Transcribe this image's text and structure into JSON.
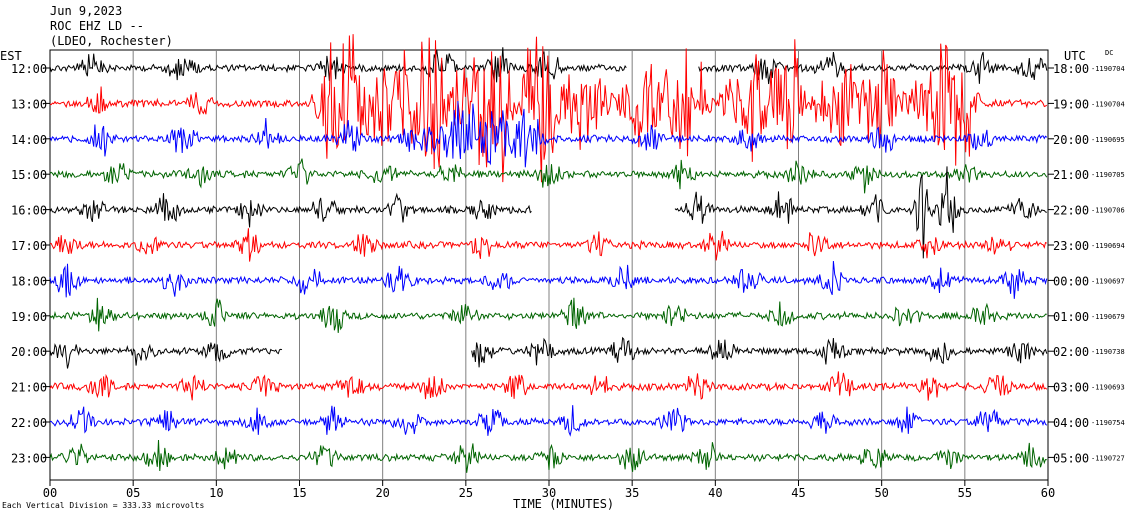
{
  "header": {
    "line1": "Jun 9,2023",
    "line2": "ROC EHZ LD --",
    "line3": "(LDEO, Rochester)"
  },
  "left_axis_title": "EST",
  "right_axis_title": "UTC",
  "dc_label": "DC",
  "footer_note": "Each Vertical Division =  333.33 microvolts",
  "chart_data": {
    "type": "line",
    "xlabel": "TIME (MINUTES)",
    "xlim": [
      0,
      60
    ],
    "x_ticks": [
      "00",
      "05",
      "10",
      "15",
      "20",
      "25",
      "30",
      "35",
      "40",
      "45",
      "50",
      "55",
      "60"
    ],
    "rows": [
      {
        "est": "12:00",
        "utc": "18:00",
        "dc": "-1190704",
        "color": "#000000",
        "gaps": [
          [
            34.7,
            39.0
          ]
        ],
        "bursts": [
          [
            2.5,
            1.0,
            0.8
          ],
          [
            8.0,
            1.2,
            0.8
          ],
          [
            17.0,
            1.0,
            0.9
          ],
          [
            23.5,
            1.0,
            1.3
          ],
          [
            27.0,
            1.0,
            1.4
          ],
          [
            30.0,
            1.0,
            1.2
          ],
          [
            43.0,
            1.0,
            1.1
          ],
          [
            47.0,
            1.2,
            0.9
          ],
          [
            56.0,
            1.0,
            0.9
          ],
          [
            59.0,
            1.0,
            0.8
          ]
        ]
      },
      {
        "est": "13:00",
        "utc": "19:00",
        "dc": "-1190704",
        "color": "#ff0000",
        "gaps": [],
        "bursts": [
          [
            3.0,
            1.0,
            0.8
          ],
          [
            9.0,
            1.0,
            0.8
          ],
          [
            17.5,
            2.0,
            5.0
          ],
          [
            19.7,
            1.2,
            4.0
          ],
          [
            21.5,
            1.5,
            3.5
          ],
          [
            23.2,
            1.5,
            4.5
          ],
          [
            25.5,
            1.5,
            3.5
          ],
          [
            27.2,
            1.8,
            4.0
          ],
          [
            29.6,
            1.5,
            5.5
          ],
          [
            32.0,
            2.0,
            3.0
          ],
          [
            36.0,
            2.5,
            3.0
          ],
          [
            38.5,
            1.5,
            4.0
          ],
          [
            42.0,
            2.0,
            3.5
          ],
          [
            44.3,
            1.2,
            6.0
          ],
          [
            47.5,
            2.0,
            3.0
          ],
          [
            50.0,
            1.5,
            3.5
          ],
          [
            53.5,
            2.5,
            3.5
          ],
          [
            55.0,
            1.0,
            3.0
          ]
        ]
      },
      {
        "est": "14:00",
        "utc": "20:00",
        "dc": "-1190695",
        "color": "#0000ff",
        "gaps": [],
        "bursts": [
          [
            3.0,
            1.0,
            1.0
          ],
          [
            8.0,
            1.0,
            1.2
          ],
          [
            13.0,
            1.0,
            0.9
          ],
          [
            18.0,
            1.0,
            1.0
          ],
          [
            22.0,
            1.2,
            1.2
          ],
          [
            25.0,
            2.5,
            2.2
          ],
          [
            27.5,
            1.5,
            2.5
          ],
          [
            29.0,
            1.0,
            1.5
          ],
          [
            36.0,
            1.0,
            0.9
          ],
          [
            42.0,
            1.0,
            1.0
          ],
          [
            50.0,
            1.0,
            1.0
          ],
          [
            56.0,
            1.0,
            0.9
          ]
        ]
      },
      {
        "est": "15:00",
        "utc": "21:00",
        "dc": "-1190705",
        "color": "#006400",
        "gaps": [],
        "bursts": [
          [
            4.0,
            1.0,
            0.9
          ],
          [
            9.0,
            1.0,
            0.9
          ],
          [
            15.0,
            1.0,
            0.9
          ],
          [
            20.0,
            1.0,
            0.8
          ],
          [
            24.0,
            1.0,
            0.9
          ],
          [
            30.0,
            1.0,
            0.9
          ],
          [
            38.0,
            1.0,
            0.9
          ],
          [
            45.0,
            1.0,
            0.8
          ],
          [
            49.0,
            1.0,
            0.9
          ],
          [
            55.0,
            1.0,
            0.9
          ]
        ]
      },
      {
        "est": "16:00",
        "utc": "22:00",
        "dc": "-1190706",
        "color": "#000000",
        "gaps": [
          [
            29.0,
            37.5
          ]
        ],
        "bursts": [
          [
            2.5,
            1.0,
            1.0
          ],
          [
            7.0,
            1.0,
            0.9
          ],
          [
            12.0,
            1.0,
            0.8
          ],
          [
            16.5,
            1.0,
            1.0
          ],
          [
            21.0,
            1.0,
            0.9
          ],
          [
            26.0,
            1.0,
            0.9
          ],
          [
            39.0,
            1.0,
            0.9
          ],
          [
            44.0,
            1.0,
            1.0
          ],
          [
            49.5,
            1.0,
            1.0
          ],
          [
            52.5,
            0.8,
            2.8
          ],
          [
            54.0,
            0.8,
            2.2
          ],
          [
            58.5,
            1.0,
            0.9
          ]
        ]
      },
      {
        "est": "17:00",
        "utc": "23:00",
        "dc": "-1190694",
        "color": "#ff0000",
        "gaps": [],
        "bursts": [
          [
            1.0,
            1.0,
            0.9
          ],
          [
            6.0,
            1.0,
            0.9
          ],
          [
            12.0,
            1.0,
            0.9
          ],
          [
            19.0,
            1.0,
            0.9
          ],
          [
            26.0,
            1.0,
            0.9
          ],
          [
            33.0,
            1.0,
            0.8
          ],
          [
            40.0,
            1.0,
            0.9
          ],
          [
            46.0,
            1.0,
            0.9
          ],
          [
            53.0,
            1.0,
            0.9
          ],
          [
            57.0,
            1.0,
            0.8
          ]
        ]
      },
      {
        "est": "18:00",
        "utc": "00:00",
        "dc": "-1190697",
        "color": "#0000ff",
        "gaps": [],
        "bursts": [
          [
            1.0,
            1.0,
            1.1
          ],
          [
            7.5,
            1.0,
            0.9
          ],
          [
            15.5,
            1.0,
            0.9
          ],
          [
            21.0,
            1.0,
            0.9
          ],
          [
            27.0,
            1.0,
            0.8
          ],
          [
            34.5,
            1.0,
            0.9
          ],
          [
            42.0,
            1.0,
            0.9
          ],
          [
            47.0,
            1.0,
            0.9
          ],
          [
            53.5,
            1.0,
            0.9
          ],
          [
            58.0,
            1.0,
            0.9
          ]
        ]
      },
      {
        "est": "19:00",
        "utc": "01:00",
        "dc": "-1190679",
        "color": "#006400",
        "gaps": [],
        "bursts": [
          [
            3.0,
            1.0,
            0.9
          ],
          [
            10.0,
            1.0,
            0.9
          ],
          [
            17.0,
            1.0,
            1.0
          ],
          [
            25.0,
            1.0,
            0.8
          ],
          [
            31.5,
            1.0,
            0.9
          ],
          [
            37.5,
            1.0,
            0.9
          ],
          [
            44.0,
            1.0,
            0.8
          ],
          [
            51.5,
            1.0,
            0.9
          ],
          [
            56.0,
            1.0,
            0.9
          ]
        ]
      },
      {
        "est": "20:00",
        "utc": "02:00",
        "dc": "-1190738",
        "color": "#000000",
        "gaps": [
          [
            14.0,
            25.3
          ]
        ],
        "bursts": [
          [
            1.0,
            1.0,
            0.9
          ],
          [
            5.5,
            1.0,
            0.8
          ],
          [
            10.0,
            1.0,
            0.9
          ],
          [
            25.8,
            1.0,
            0.9
          ],
          [
            29.5,
            1.0,
            0.9
          ],
          [
            34.5,
            1.0,
            0.9
          ],
          [
            40.5,
            1.0,
            0.9
          ],
          [
            47.0,
            1.0,
            0.8
          ],
          [
            53.5,
            1.0,
            0.9
          ],
          [
            58.5,
            1.0,
            0.9
          ]
        ]
      },
      {
        "est": "21:00",
        "utc": "03:00",
        "dc": "-1190693",
        "color": "#ff0000",
        "gaps": [],
        "bursts": [
          [
            3.0,
            1.0,
            0.9
          ],
          [
            8.5,
            1.0,
            0.9
          ],
          [
            13.0,
            1.0,
            0.9
          ],
          [
            18.0,
            1.0,
            0.9
          ],
          [
            23.0,
            1.0,
            0.9
          ],
          [
            28.0,
            1.0,
            0.9
          ],
          [
            33.0,
            1.0,
            0.8
          ],
          [
            39.0,
            1.0,
            0.9
          ],
          [
            47.5,
            1.0,
            0.9
          ],
          [
            53.0,
            1.0,
            0.8
          ],
          [
            57.0,
            1.0,
            0.9
          ]
        ]
      },
      {
        "est": "22:00",
        "utc": "04:00",
        "dc": "-1190754",
        "color": "#0000ff",
        "gaps": [],
        "bursts": [
          [
            2.0,
            1.0,
            0.9
          ],
          [
            7.0,
            1.0,
            0.9
          ],
          [
            12.5,
            1.0,
            0.8
          ],
          [
            17.0,
            1.0,
            0.9
          ],
          [
            21.5,
            1.0,
            0.9
          ],
          [
            26.5,
            1.0,
            0.9
          ],
          [
            31.5,
            1.0,
            0.8
          ],
          [
            37.5,
            1.0,
            0.9
          ],
          [
            46.5,
            1.0,
            0.9
          ],
          [
            51.5,
            1.0,
            0.8
          ],
          [
            56.5,
            1.0,
            0.9
          ]
        ]
      },
      {
        "est": "23:00",
        "utc": "05:00",
        "dc": "-1190727",
        "color": "#006400",
        "gaps": [],
        "bursts": [
          [
            1.5,
            1.0,
            0.9
          ],
          [
            6.5,
            1.0,
            0.9
          ],
          [
            10.5,
            1.0,
            0.9
          ],
          [
            16.5,
            1.0,
            0.9
          ],
          [
            25.0,
            1.0,
            0.9
          ],
          [
            30.0,
            1.0,
            0.9
          ],
          [
            35.0,
            1.0,
            0.9
          ],
          [
            39.5,
            1.0,
            0.9
          ],
          [
            49.5,
            1.0,
            0.9
          ],
          [
            54.0,
            1.0,
            0.8
          ],
          [
            59.0,
            1.0,
            0.8
          ]
        ]
      }
    ]
  }
}
